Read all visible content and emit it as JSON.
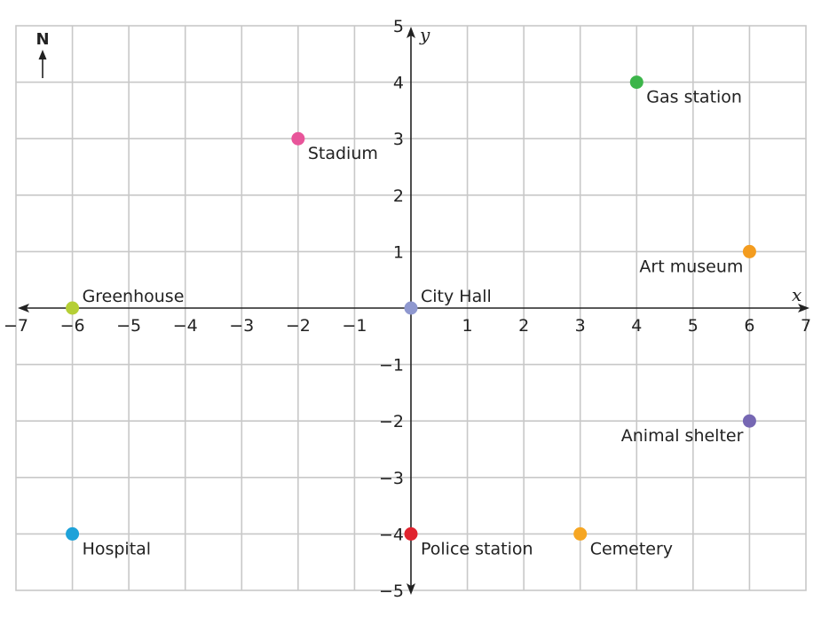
{
  "chart_data": {
    "type": "scatter",
    "title": "",
    "xlabel": "x",
    "ylabel": "y",
    "xlim": [
      -7,
      7
    ],
    "ylim": [
      -5,
      5
    ],
    "grid": true,
    "x_ticks": [
      -7,
      -6,
      -5,
      -4,
      -3,
      -2,
      -1,
      1,
      2,
      3,
      4,
      5,
      6,
      7
    ],
    "y_ticks": [
      -5,
      -4,
      -3,
      -2,
      -1,
      1,
      2,
      3,
      4,
      5
    ],
    "compass": {
      "label": "N",
      "arrow": "up"
    },
    "points": [
      {
        "label": "Gas station",
        "x": 4,
        "y": 4,
        "color": "#3cb54a",
        "label_pos": "below-right"
      },
      {
        "label": "Stadium",
        "x": -2,
        "y": 3,
        "color": "#e8559a",
        "label_pos": "below-right"
      },
      {
        "label": "Art museum",
        "x": 6,
        "y": 1,
        "color": "#f39c1f",
        "label_pos": "below-left"
      },
      {
        "label": "Greenhouse",
        "x": -6,
        "y": 0,
        "color": "#b5cf36",
        "label_pos": "above-right"
      },
      {
        "label": "City Hall",
        "x": 0,
        "y": 0,
        "color": "#8f98cf",
        "label_pos": "above-right"
      },
      {
        "label": "Animal shelter",
        "x": 6,
        "y": -2,
        "color": "#7667b3",
        "label_pos": "below-left"
      },
      {
        "label": "Hospital",
        "x": -6,
        "y": -4,
        "color": "#1ea2d9",
        "label_pos": "below-right"
      },
      {
        "label": "Police station",
        "x": 0,
        "y": -4,
        "color": "#e0232e",
        "label_pos": "below-right"
      },
      {
        "label": "Cemetery",
        "x": 3,
        "y": -4,
        "color": "#f6a623",
        "label_pos": "below-right"
      }
    ]
  }
}
